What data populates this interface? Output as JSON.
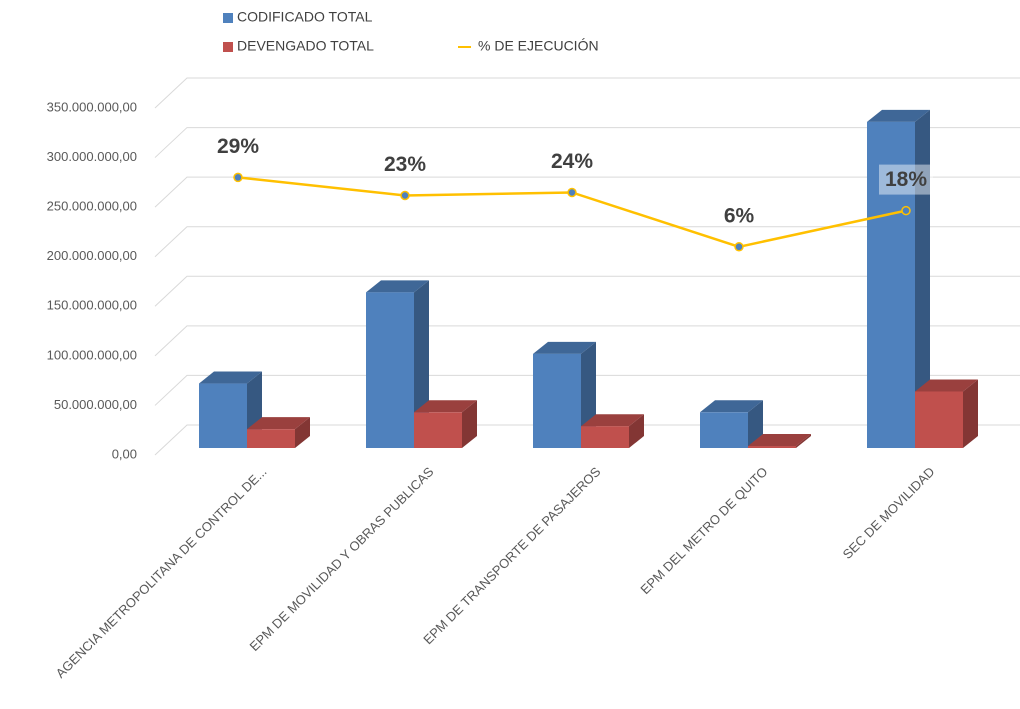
{
  "chart_data": {
    "type": "bar3d",
    "categories": [
      "AGENCIA METROPOLITANA DE CONTROL DE...",
      "EPM DE MOVILIDAD Y OBRAS PUBLICAS",
      "EPM DE TRANSPORTE DE PASAJEROS",
      "EPM DEL METRO DE QUITO",
      "SEC DE MOVILIDAD"
    ],
    "series": [
      {
        "name": "CODIFICADO TOTAL",
        "color": "#4f81bd",
        "values": [
          65000000,
          157000000,
          95000000,
          36000000,
          329000000
        ]
      },
      {
        "name": "DEVENGADO TOTAL",
        "color": "#c0504d",
        "values": [
          19000000,
          36000000,
          22000000,
          2000000,
          57000000
        ]
      },
      {
        "name": "% DE EJECUCIÓN",
        "color": "#ffc000",
        "axis": "y2",
        "values": [
          29,
          23,
          24,
          6,
          18
        ],
        "value_labels": [
          "29%",
          "23%",
          "24%",
          "6%",
          "18%"
        ]
      }
    ],
    "ylim": [
      0,
      350000000
    ],
    "yticks": [
      {
        "value": 0,
        "label": "0,00"
      },
      {
        "value": 50000000,
        "label": "50.000.000,00"
      },
      {
        "value": 100000000,
        "label": "100.000.000,00"
      },
      {
        "value": 150000000,
        "label": "150.000.000,00"
      },
      {
        "value": 200000000,
        "label": "200.000.000,00"
      },
      {
        "value": 250000000,
        "label": "250.000.000,00"
      },
      {
        "value": 300000000,
        "label": "300.000.000,00"
      },
      {
        "value": 350000000,
        "label": "350.000.000,00"
      }
    ],
    "y2lim": [
      -63,
      52
    ],
    "grid": true
  }
}
